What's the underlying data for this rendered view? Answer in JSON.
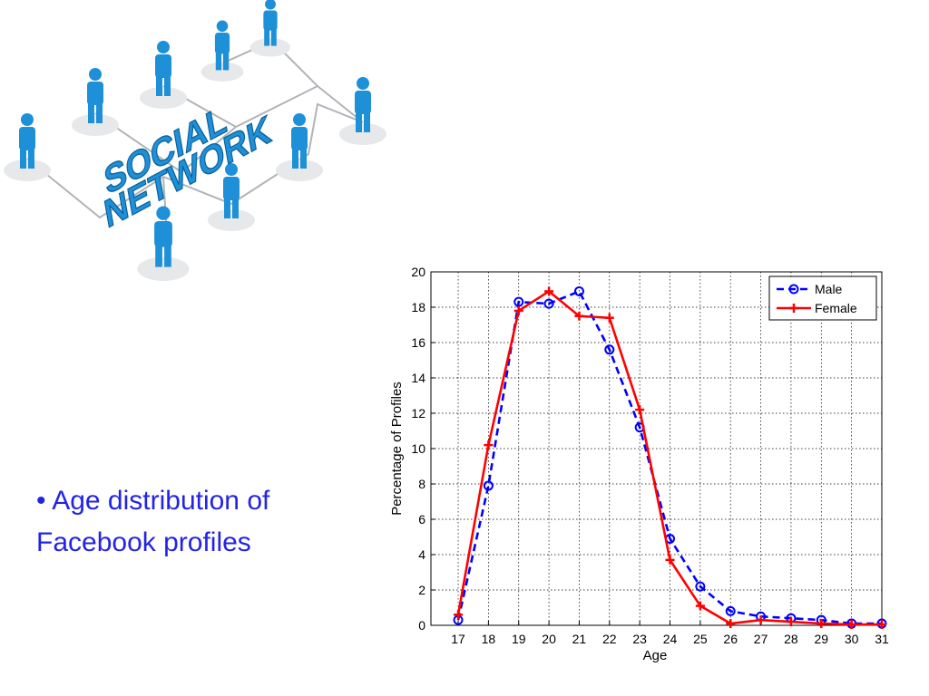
{
  "slide": {
    "bullet": "•",
    "caption_line1": "Age distribution of",
    "caption_line2": "Facebook profiles",
    "caption_color": "#2323e6"
  },
  "logo": {
    "word1": "SOCIAL",
    "word2": "NETWORK",
    "icon": "people-network-icon",
    "color": "#1e90d8"
  },
  "chart_data": {
    "type": "line",
    "title": "",
    "xlabel": "Age",
    "ylabel": "Percentage of Profiles",
    "x": [
      17,
      18,
      19,
      20,
      21,
      22,
      23,
      24,
      25,
      26,
      27,
      28,
      29,
      30,
      31
    ],
    "xlim": [
      16.1,
      31
    ],
    "ylim": [
      0,
      20
    ],
    "yticks": [
      0,
      2,
      4,
      6,
      8,
      10,
      12,
      14,
      16,
      18,
      20
    ],
    "grid": true,
    "legend_position": "top-right",
    "series": [
      {
        "name": "Male",
        "color": "#0000ff",
        "line_style": "dashed",
        "marker": "circle",
        "values": [
          0.3,
          7.9,
          18.3,
          18.2,
          18.9,
          15.6,
          11.2,
          4.9,
          2.2,
          0.8,
          0.5,
          0.4,
          0.3,
          0.1,
          0.1
        ]
      },
      {
        "name": "Female",
        "color": "#ff0000",
        "line_style": "solid",
        "marker": "plus",
        "values": [
          0.6,
          10.2,
          17.8,
          18.9,
          17.5,
          17.4,
          12.2,
          3.7,
          1.1,
          0.1,
          0.3,
          0.2,
          0.1,
          0.05,
          0.05
        ]
      }
    ]
  }
}
